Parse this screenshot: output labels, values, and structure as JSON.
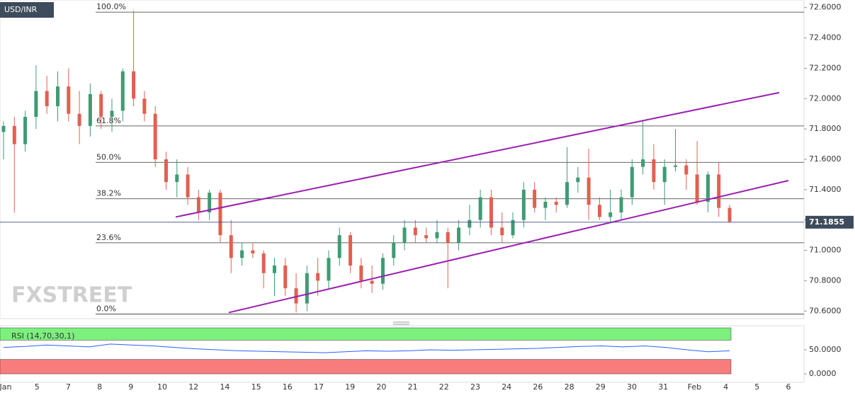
{
  "chart_data": {
    "type": "candlestick",
    "symbol": "USD/INR",
    "watermark": "FXSTREET",
    "up_color": "#3f9b74",
    "down_color": "#e0614f",
    "categories": [
      "Jan",
      "5",
      "7",
      "8",
      "9",
      "10",
      "12",
      "14",
      "15",
      "16",
      "17",
      "19",
      "20",
      "21",
      "22",
      "23",
      "24",
      "26",
      "28",
      "29",
      "30",
      "31",
      "Feb",
      "4",
      "5",
      "6"
    ],
    "candles": [
      [
        71.78,
        71.85,
        71.6,
        71.82
      ],
      [
        71.82,
        71.88,
        71.25,
        71.7
      ],
      [
        71.7,
        71.92,
        71.65,
        71.88
      ],
      [
        71.88,
        72.22,
        71.8,
        72.05
      ],
      [
        72.05,
        72.15,
        71.9,
        71.95
      ],
      [
        71.95,
        72.18,
        71.85,
        72.08
      ],
      [
        72.08,
        72.2,
        71.85,
        71.9
      ],
      [
        71.9,
        72.05,
        71.7,
        71.82
      ],
      [
        71.82,
        72.1,
        71.75,
        72.03
      ],
      [
        72.03,
        72.05,
        71.8,
        71.88
      ],
      [
        71.88,
        72.0,
        71.78,
        71.92
      ],
      [
        71.92,
        72.2,
        71.85,
        72.18
      ],
      [
        72.18,
        72.58,
        71.95,
        72.0
      ],
      [
        72.0,
        72.05,
        71.85,
        71.9
      ],
      [
        71.9,
        71.95,
        71.55,
        71.6
      ],
      [
        71.6,
        71.65,
        71.4,
        71.45
      ],
      [
        71.45,
        71.6,
        71.35,
        71.5
      ],
      [
        71.5,
        71.55,
        71.3,
        71.35
      ],
      [
        71.35,
        71.4,
        71.2,
        71.25
      ],
      [
        71.25,
        71.4,
        71.2,
        71.38
      ],
      [
        71.38,
        71.4,
        71.05,
        71.1
      ],
      [
        71.1,
        71.2,
        70.85,
        70.95
      ],
      [
        70.95,
        71.05,
        70.9,
        71.0
      ],
      [
        71.0,
        71.05,
        70.95,
        70.98
      ],
      [
        70.98,
        71.0,
        70.75,
        70.85
      ],
      [
        70.85,
        70.95,
        70.7,
        70.9
      ],
      [
        70.9,
        70.95,
        70.7,
        70.75
      ],
      [
        70.75,
        70.85,
        70.59,
        70.65
      ],
      [
        70.65,
        70.9,
        70.6,
        70.85
      ],
      [
        70.85,
        70.95,
        70.7,
        70.8
      ],
      [
        70.8,
        71.0,
        70.75,
        70.95
      ],
      [
        70.95,
        71.15,
        70.9,
        71.1
      ],
      [
        71.1,
        71.12,
        70.85,
        70.9
      ],
      [
        70.9,
        70.95,
        70.75,
        70.8
      ],
      [
        70.8,
        70.9,
        70.72,
        70.78
      ],
      [
        70.78,
        70.98,
        70.74,
        70.95
      ],
      [
        70.95,
        71.1,
        70.9,
        71.05
      ],
      [
        71.05,
        71.2,
        71.0,
        71.15
      ],
      [
        71.15,
        71.2,
        71.05,
        71.1
      ],
      [
        71.1,
        71.15,
        71.05,
        71.08
      ],
      [
        71.08,
        71.2,
        71.05,
        71.12
      ],
      [
        71.12,
        71.15,
        70.75,
        71.05
      ],
      [
        71.05,
        71.2,
        71.0,
        71.15
      ],
      [
        71.15,
        71.3,
        71.1,
        71.2
      ],
      [
        71.2,
        71.4,
        71.15,
        71.35
      ],
      [
        71.35,
        71.4,
        71.1,
        71.15
      ],
      [
        71.15,
        71.25,
        71.05,
        71.1
      ],
      [
        71.1,
        71.25,
        71.08,
        71.2
      ],
      [
        71.2,
        71.45,
        71.15,
        71.4
      ],
      [
        71.4,
        71.45,
        71.25,
        71.28
      ],
      [
        71.28,
        71.35,
        71.2,
        71.32
      ],
      [
        71.32,
        71.35,
        71.25,
        71.3
      ],
      [
        71.3,
        71.68,
        71.28,
        71.45
      ],
      [
        71.45,
        71.55,
        71.38,
        71.48
      ],
      [
        71.48,
        71.67,
        71.2,
        71.3
      ],
      [
        71.3,
        71.35,
        71.2,
        71.22
      ],
      [
        71.22,
        71.4,
        71.18,
        71.25
      ],
      [
        71.25,
        71.4,
        71.2,
        71.35
      ],
      [
        71.35,
        71.6,
        71.3,
        71.55
      ],
      [
        71.55,
        71.85,
        71.5,
        71.6
      ],
      [
        71.6,
        71.7,
        71.4,
        71.45
      ],
      [
        71.45,
        71.6,
        71.3,
        71.55
      ],
      [
        71.55,
        71.8,
        71.52,
        71.56
      ],
      [
        71.56,
        71.6,
        71.4,
        71.5
      ],
      [
        71.5,
        71.72,
        71.3,
        71.32
      ],
      [
        71.32,
        71.52,
        71.25,
        71.5
      ],
      [
        71.5,
        71.58,
        71.22,
        71.28
      ],
      [
        71.28,
        71.3,
        71.18,
        71.19
      ]
    ],
    "fib_levels": [
      {
        "label": "100.0%",
        "value": 72.57
      },
      {
        "label": "61.8%",
        "value": 71.82
      },
      {
        "label": "50.0%",
        "value": 71.58
      },
      {
        "label": "38.2%",
        "value": 71.34
      },
      {
        "label": "23.6%",
        "value": 71.05
      },
      {
        "label": "0.0%",
        "value": 70.58
      }
    ],
    "channel_color": "#9b1fb0",
    "channel": [
      {
        "values": [
          71.22,
          72.04
        ]
      },
      {
        "values": [
          70.59,
          71.46
        ]
      }
    ],
    "last_price": 71.1855,
    "ylim": [
      70.55,
      72.65
    ],
    "yticks": [
      {
        "value": 72.6,
        "label": "72.6000"
      },
      {
        "value": 72.4,
        "label": "72.4000"
      },
      {
        "value": 72.2,
        "label": "72.2000"
      },
      {
        "value": 72.0,
        "label": "72.0000"
      },
      {
        "value": 71.8,
        "label": "71.8000"
      },
      {
        "value": 71.6,
        "label": "71.6000"
      },
      {
        "value": 71.4,
        "label": "71.4000"
      },
      {
        "value": 71.2,
        "label": "71.2000"
      },
      {
        "value": 71.0,
        "label": "71.0000"
      },
      {
        "value": 70.8,
        "label": "70.8000"
      },
      {
        "value": 70.6,
        "label": "70.6000"
      }
    ],
    "rsi": {
      "label": "RSI (14,70,30,1)",
      "color": "#2962ff",
      "overbought": 70,
      "oversold": 30,
      "ylim": [
        0,
        100
      ],
      "yticks": [
        {
          "value": 50,
          "label": "50.0000"
        },
        {
          "value": 0,
          "label": "0.0000"
        }
      ],
      "values": [
        55,
        57,
        60,
        58,
        56,
        62,
        60,
        58,
        55,
        52,
        50,
        48,
        47,
        46,
        45,
        44,
        46,
        48,
        47,
        48,
        50,
        49,
        50,
        51,
        52,
        53,
        55,
        57,
        58,
        56,
        58,
        55,
        50,
        46,
        48
      ]
    }
  }
}
